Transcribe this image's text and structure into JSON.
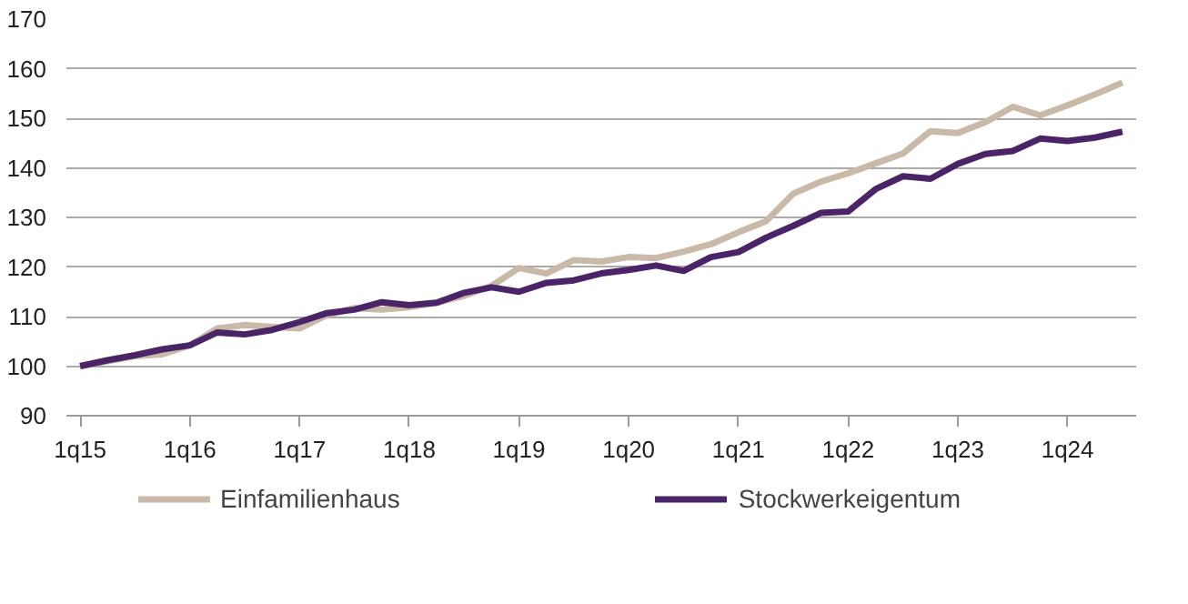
{
  "chart_data": {
    "type": "line",
    "legend": "bottom",
    "grid": "y",
    "line_style": "solid",
    "categories": [
      "1q15",
      null,
      null,
      null,
      "1q16",
      null,
      null,
      null,
      "1q17",
      null,
      null,
      null,
      "1q18",
      null,
      null,
      null,
      "1q19",
      null,
      null,
      null,
      "1q20",
      null,
      null,
      null,
      "1q21",
      null,
      null,
      null,
      "1q22",
      null,
      null,
      null,
      "1q23",
      null,
      null,
      null,
      "1q24",
      null,
      null
    ],
    "ylim": [
      90,
      170
    ],
    "yticks": [
      90,
      100,
      110,
      120,
      130,
      140,
      150,
      160,
      170
    ],
    "series": [
      {
        "name": "Einfamilienhaus",
        "color": "#c9b9a8",
        "values": [
          100,
          101.0,
          102.0,
          102.4,
          104.2,
          107.6,
          108.3,
          107.9,
          107.6,
          110.3,
          111.7,
          111.4,
          111.9,
          112.8,
          114.2,
          116.2,
          119.8,
          118.7,
          121.4,
          121.1,
          122.0,
          121.8,
          123.1,
          124.6,
          127.0,
          129.2,
          134.8,
          137.2,
          138.9,
          140.9,
          142.9,
          147.4,
          147.0,
          149.2,
          152.3,
          150.6,
          152.6,
          154.8,
          157.2
        ]
      },
      {
        "name": "Stockwerkeigentum",
        "color": "#4b2468",
        "values": [
          100,
          101.2,
          102.2,
          103.4,
          104.2,
          106.8,
          106.4,
          107.3,
          108.9,
          110.7,
          111.4,
          112.9,
          112.3,
          112.8,
          114.8,
          115.9,
          115.0,
          116.8,
          117.3,
          118.7,
          119.4,
          120.3,
          119.2,
          122.0,
          123.0,
          125.9,
          128.3,
          130.9,
          131.2,
          135.7,
          138.3,
          137.8,
          140.8,
          142.8,
          143.4,
          145.9,
          145.4,
          146.1,
          147.3
        ]
      }
    ]
  }
}
